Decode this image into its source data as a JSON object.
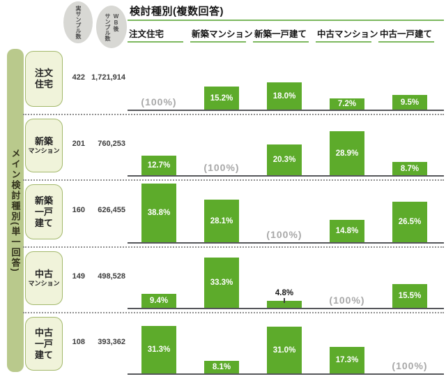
{
  "title": "検討種別(複数回答)",
  "badges": {
    "actual": "実サンプル数",
    "wb": "WB後サンプル数",
    "wb_multiline": "WB後\nサンプル数"
  },
  "sidebar_label": "メイン検討種別(単一回答)",
  "self_cell_display": "(100%)",
  "colors": {
    "bar_green": "#5dab2b",
    "underline_green": "#7cb85e",
    "sidebar_olive": "#b9c98c",
    "label_box_fill": "#f0f3da",
    "label_box_border": "#a2b86a",
    "badge_gray": "#d8d8d4",
    "self_cell_gray": "#a8a8a8",
    "baseline_gray": "#55565a"
  },
  "chart_data": {
    "type": "bar",
    "title": "検討種別(複数回答)",
    "row_dimension": "メイン検討種別(単一回答)",
    "unit": "%",
    "legend": "none",
    "grid": "off",
    "categories": [
      "注文住宅",
      "新築マンション",
      "新築一戸建て",
      "中古マンション",
      "中古一戸建て"
    ],
    "self_cell_display": "(100%)",
    "rows": [
      {
        "label": "注文住宅",
        "label_lines": [
          "注文",
          "住宅"
        ],
        "label_small_index": -1,
        "actual_sample": "422",
        "wb_sample": "1,721,914",
        "self_index": 0,
        "values": [
          100,
          15.2,
          18.0,
          7.2,
          9.5
        ],
        "cells": [
          "(100%)",
          "15.2%",
          "18.0%",
          "7.2%",
          "9.5%"
        ]
      },
      {
        "label": "新築マンション",
        "label_lines": [
          "新築",
          "マンション"
        ],
        "label_small_index": 1,
        "actual_sample": "201",
        "wb_sample": "760,253",
        "self_index": 1,
        "values": [
          12.7,
          100,
          20.3,
          28.9,
          8.7
        ],
        "cells": [
          "12.7%",
          "(100%)",
          "20.3%",
          "28.9%",
          "8.7%"
        ]
      },
      {
        "label": "新築一戸建て",
        "label_lines": [
          "新築",
          "一戸",
          "建て"
        ],
        "label_small_index": -1,
        "actual_sample": "160",
        "wb_sample": "626,455",
        "self_index": 2,
        "values": [
          38.8,
          28.1,
          100,
          14.8,
          26.5
        ],
        "cells": [
          "38.8%",
          "28.1%",
          "(100%)",
          "14.8%",
          "26.5%"
        ]
      },
      {
        "label": "中古マンション",
        "label_lines": [
          "中古",
          "マンション"
        ],
        "label_small_index": 1,
        "actual_sample": "149",
        "wb_sample": "498,528",
        "self_index": 3,
        "values": [
          9.4,
          33.3,
          4.8,
          100,
          15.5
        ],
        "cells": [
          "9.4%",
          "33.3%",
          "4.8%",
          "(100%)",
          "15.5%"
        ]
      },
      {
        "label": "中古一戸建て",
        "label_lines": [
          "中古",
          "一戸",
          "建て"
        ],
        "label_small_index": -1,
        "actual_sample": "108",
        "wb_sample": "393,362",
        "self_index": 4,
        "values": [
          31.3,
          8.1,
          31.0,
          17.3,
          100
        ],
        "cells": [
          "31.3%",
          "8.1%",
          "31.0%",
          "17.3%",
          "(100%)"
        ]
      }
    ]
  }
}
